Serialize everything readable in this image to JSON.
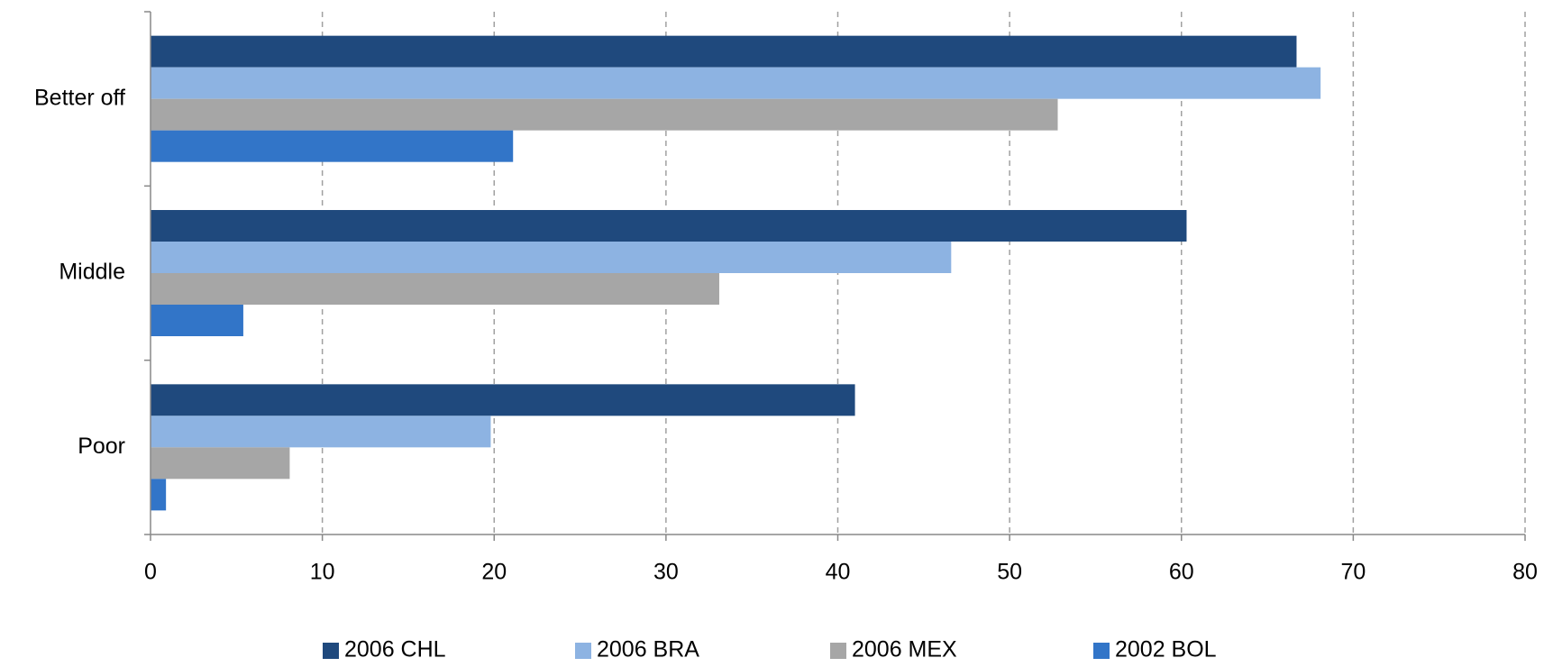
{
  "chart_data": {
    "type": "hbar",
    "categories": [
      "Better off",
      "Middle",
      "Poor"
    ],
    "series": [
      {
        "name": "2006 CHL",
        "color": "#1f497d",
        "values": [
          66.7,
          60.3,
          41.0
        ]
      },
      {
        "name": "2006 BRA",
        "color": "#8db3e2",
        "values": [
          68.1,
          46.6,
          19.8
        ]
      },
      {
        "name": "2006 MEX",
        "color": "#a6a6a6",
        "values": [
          52.8,
          33.1,
          8.1
        ]
      },
      {
        "name": "2002 BOL",
        "color": "#3275c8",
        "values": [
          21.1,
          5.4,
          0.9
        ]
      }
    ],
    "xlim": [
      0,
      80
    ],
    "xticks": [
      0,
      10,
      20,
      30,
      40,
      50,
      60,
      70,
      80
    ],
    "grid": true,
    "legend": "bottom"
  }
}
